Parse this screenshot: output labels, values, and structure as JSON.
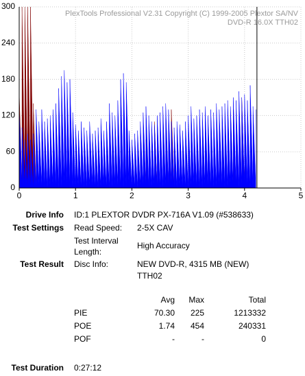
{
  "chart_data": {
    "type": "area",
    "watermark": [
      "PlexTools Professional V2.31 Copyright (C) 1999-2005 Plextor SA/NV",
      "DVD-R   16.0X   TTH02"
    ],
    "x": [
      0,
      0.05,
      0.1,
      0.15,
      0.2,
      0.25,
      0.3,
      0.35,
      0.4,
      0.45,
      0.5,
      0.55,
      0.6,
      0.65,
      0.7,
      0.75,
      0.8,
      0.85,
      0.9,
      0.95,
      1,
      1.05,
      1.1,
      1.15,
      1.2,
      1.25,
      1.3,
      1.35,
      1.4,
      1.45,
      1.5,
      1.55,
      1.6,
      1.65,
      1.7,
      1.75,
      1.8,
      1.85,
      1.9,
      1.95,
      2,
      2.05,
      2.1,
      2.15,
      2.2,
      2.25,
      2.3,
      2.35,
      2.4,
      2.45,
      2.5,
      2.55,
      2.6,
      2.65,
      2.7,
      2.75,
      2.8,
      2.85,
      2.9,
      2.95,
      3,
      3.05,
      3.1,
      3.15,
      3.2,
      3.25,
      3.3,
      3.35,
      3.4,
      3.45,
      3.5,
      3.55,
      3.6,
      3.65,
      3.7,
      3.75,
      3.8,
      3.85,
      3.9,
      3.95,
      4,
      4.05,
      4.1,
      4.15,
      4.2
    ],
    "series": [
      {
        "color": "#0000ff",
        "values": [
          130,
          100,
          80,
          90,
          80,
          90,
          130,
          110,
          130,
          110,
          115,
          120,
          130,
          140,
          165,
          185,
          195,
          175,
          180,
          125,
          105,
          95,
          110,
          100,
          95,
          110,
          90,
          95,
          100,
          115,
          95,
          110,
          140,
          125,
          120,
          145,
          180,
          190,
          175,
          95,
          80,
          90,
          95,
          110,
          125,
          135,
          120,
          110,
          105,
          120,
          125,
          135,
          140,
          130,
          110,
          100,
          110,
          105,
          95,
          110,
          120,
          135,
          115,
          120,
          130,
          125,
          135,
          120,
          130,
          125,
          140,
          130,
          135,
          140,
          145,
          135,
          150,
          145,
          160,
          150,
          155,
          145,
          170,
          135,
          130
        ]
      },
      {
        "color": "#800000",
        "values": [
          160,
          300,
          300,
          300,
          300,
          140,
          0,
          0,
          0,
          0,
          0,
          0,
          0,
          0,
          0,
          0,
          0,
          0,
          0,
          0,
          0,
          0,
          0,
          0,
          0,
          0,
          0,
          0,
          0,
          0,
          0,
          0,
          0,
          0,
          0,
          0,
          0,
          0,
          0,
          0,
          0,
          0,
          0,
          75,
          0,
          80,
          0,
          0,
          110,
          0,
          0,
          0,
          115,
          0,
          130,
          0,
          0,
          0,
          0,
          0,
          0,
          0,
          0,
          0,
          0,
          0,
          0,
          0,
          0,
          0,
          0,
          0,
          0,
          0,
          0,
          0,
          130,
          0,
          0,
          150,
          0,
          0,
          0,
          0,
          0
        ]
      }
    ],
    "end_line": 4.22,
    "xlim": [
      0,
      5
    ],
    "xticks": [
      0,
      1,
      2,
      3,
      4,
      5
    ],
    "ylim": [
      0,
      300
    ],
    "yticks": [
      0,
      60,
      120,
      180,
      240,
      300
    ],
    "grid": true
  },
  "report": {
    "drive_info": {
      "label": "Drive Info",
      "value": "ID:1 PLEXTOR DVDR PX-716A V1.09 (#538633)"
    },
    "test_settings": {
      "label": "Test Settings",
      "read_speed_label": "Read Speed:",
      "read_speed": "2-5X CAV",
      "interval_label_1": "Test Interval",
      "interval_label_2": "Length:",
      "interval": "High Accuracy"
    },
    "test_result": {
      "label": "Test Result",
      "disc_info_label": "Disc Info:",
      "disc_info_1": "NEW DVD-R, 4315 MB (NEW)",
      "disc_info_2": "TTH02"
    },
    "table": {
      "header": [
        "Avg",
        "Max",
        "Total"
      ],
      "rows": [
        [
          "PIE",
          "70.30",
          "225",
          "1213332"
        ],
        [
          "POE",
          "1.74",
          "454",
          "240331"
        ],
        [
          "POF",
          "-",
          "-",
          "0"
        ]
      ]
    },
    "duration": {
      "label": "Test Duration",
      "value": "0:27:12"
    }
  }
}
